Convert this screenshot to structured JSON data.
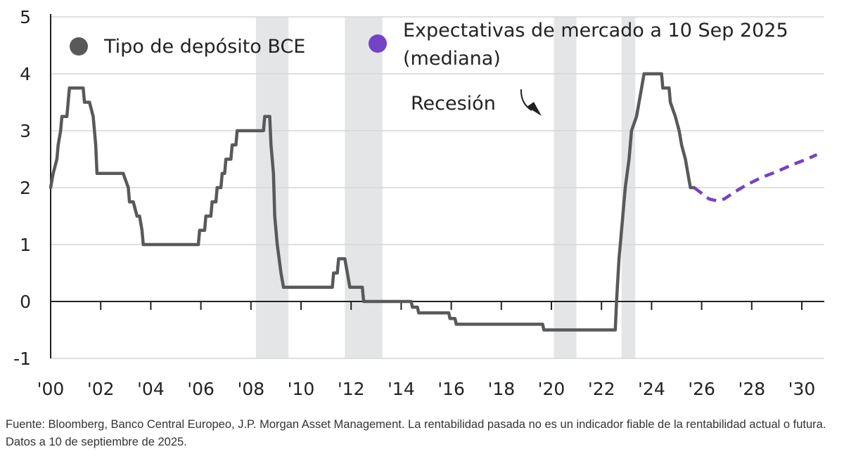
{
  "chart_data": {
    "type": "line",
    "ylim": [
      -1,
      5
    ],
    "xlim": [
      2000,
      2031
    ],
    "y_ticks": [
      "-1",
      "0",
      "1",
      "2",
      "3",
      "4",
      "5"
    ],
    "x_ticks": [
      {
        "x": 2000,
        "label": "'00"
      },
      {
        "x": 2002,
        "label": "'02"
      },
      {
        "x": 2004,
        "label": "'04"
      },
      {
        "x": 2006,
        "label": "'06"
      },
      {
        "x": 2008,
        "label": "'08"
      },
      {
        "x": 2010,
        "label": "'10"
      },
      {
        "x": 2012,
        "label": "'12"
      },
      {
        "x": 2014,
        "label": "'14"
      },
      {
        "x": 2016,
        "label": "'16"
      },
      {
        "x": 2018,
        "label": "'18"
      },
      {
        "x": 2020,
        "label": "'20"
      },
      {
        "x": 2022,
        "label": "'22"
      },
      {
        "x": 2024,
        "label": "'24"
      },
      {
        "x": 2026,
        "label": "'26"
      },
      {
        "x": 2028,
        "label": "'28"
      },
      {
        "x": 2030,
        "label": "'30"
      }
    ],
    "recessions": [
      [
        2008.2,
        2009.5
      ],
      [
        2011.75,
        2013.25
      ],
      [
        2020.1,
        2021.0
      ],
      [
        2022.8,
        2023.35
      ]
    ],
    "grid": "horizontal",
    "series": [
      {
        "name": "Tipo de depósito BCE",
        "color": "#58595b",
        "style": "solid",
        "points": [
          [
            2000.0,
            2.0
          ],
          [
            2000.1,
            2.25
          ],
          [
            2000.25,
            2.5
          ],
          [
            2000.3,
            2.75
          ],
          [
            2000.4,
            3.0
          ],
          [
            2000.45,
            3.25
          ],
          [
            2000.65,
            3.25
          ],
          [
            2000.7,
            3.5
          ],
          [
            2000.75,
            3.75
          ],
          [
            2001.3,
            3.75
          ],
          [
            2001.35,
            3.5
          ],
          [
            2001.55,
            3.5
          ],
          [
            2001.7,
            3.25
          ],
          [
            2001.75,
            3.0
          ],
          [
            2001.8,
            2.75
          ],
          [
            2001.85,
            2.25
          ],
          [
            2002.9,
            2.25
          ],
          [
            2003.1,
            2.0
          ],
          [
            2003.15,
            1.75
          ],
          [
            2003.3,
            1.75
          ],
          [
            2003.45,
            1.5
          ],
          [
            2003.55,
            1.5
          ],
          [
            2003.65,
            1.25
          ],
          [
            2003.7,
            1.0
          ],
          [
            2005.9,
            1.0
          ],
          [
            2005.95,
            1.25
          ],
          [
            2006.15,
            1.25
          ],
          [
            2006.2,
            1.5
          ],
          [
            2006.4,
            1.5
          ],
          [
            2006.45,
            1.75
          ],
          [
            2006.6,
            1.75
          ],
          [
            2006.65,
            2.0
          ],
          [
            2006.8,
            2.0
          ],
          [
            2006.85,
            2.25
          ],
          [
            2006.95,
            2.25
          ],
          [
            2007.0,
            2.5
          ],
          [
            2007.2,
            2.5
          ],
          [
            2007.25,
            2.75
          ],
          [
            2007.4,
            2.75
          ],
          [
            2007.45,
            3.0
          ],
          [
            2008.5,
            3.0
          ],
          [
            2008.55,
            3.25
          ],
          [
            2008.75,
            3.25
          ],
          [
            2008.8,
            2.75
          ],
          [
            2008.9,
            2.25
          ],
          [
            2008.95,
            1.5
          ],
          [
            2009.05,
            1.0
          ],
          [
            2009.2,
            0.5
          ],
          [
            2009.3,
            0.25
          ],
          [
            2011.25,
            0.25
          ],
          [
            2011.3,
            0.5
          ],
          [
            2011.45,
            0.5
          ],
          [
            2011.5,
            0.75
          ],
          [
            2011.75,
            0.75
          ],
          [
            2011.85,
            0.5
          ],
          [
            2011.95,
            0.25
          ],
          [
            2012.45,
            0.25
          ],
          [
            2012.5,
            0.0
          ],
          [
            2014.4,
            0.0
          ],
          [
            2014.45,
            -0.1
          ],
          [
            2014.65,
            -0.1
          ],
          [
            2014.7,
            -0.2
          ],
          [
            2015.9,
            -0.2
          ],
          [
            2015.95,
            -0.3
          ],
          [
            2016.15,
            -0.3
          ],
          [
            2016.2,
            -0.4
          ],
          [
            2019.65,
            -0.4
          ],
          [
            2019.7,
            -0.5
          ],
          [
            2022.55,
            -0.5
          ],
          [
            2022.6,
            0.0
          ],
          [
            2022.7,
            0.75
          ],
          [
            2022.85,
            1.5
          ],
          [
            2022.95,
            2.0
          ],
          [
            2023.1,
            2.5
          ],
          [
            2023.2,
            3.0
          ],
          [
            2023.4,
            3.25
          ],
          [
            2023.5,
            3.5
          ],
          [
            2023.6,
            3.75
          ],
          [
            2023.7,
            4.0
          ],
          [
            2024.4,
            4.0
          ],
          [
            2024.45,
            3.75
          ],
          [
            2024.7,
            3.75
          ],
          [
            2024.75,
            3.5
          ],
          [
            2024.95,
            3.25
          ],
          [
            2025.1,
            3.0
          ],
          [
            2025.2,
            2.75
          ],
          [
            2025.35,
            2.5
          ],
          [
            2025.45,
            2.25
          ],
          [
            2025.55,
            2.0
          ],
          [
            2025.7,
            2.0
          ]
        ]
      },
      {
        "name": "Expectativas de mercado a 10 Sep 2025 (mediana)",
        "color": "#7442c8",
        "style": "dashed",
        "points": [
          [
            2025.7,
            2.0
          ],
          [
            2026.0,
            1.9
          ],
          [
            2026.3,
            1.8
          ],
          [
            2026.6,
            1.77
          ],
          [
            2026.9,
            1.8
          ],
          [
            2027.3,
            1.92
          ],
          [
            2027.8,
            2.05
          ],
          [
            2028.4,
            2.18
          ],
          [
            2029.0,
            2.28
          ],
          [
            2029.6,
            2.4
          ],
          [
            2030.2,
            2.5
          ],
          [
            2030.6,
            2.58
          ]
        ]
      }
    ],
    "legend": [
      {
        "label": "Tipo de depósito BCE",
        "color": "#58595b"
      },
      {
        "label_line1": "Expectativas de mercado a 10 Sep 2025",
        "label_line2": "(mediana)",
        "color": "#7442c8"
      }
    ],
    "recession_label": "Recesión"
  },
  "source": "Fuente: Bloomberg, Banco Central Europeo, J.P. Morgan Asset Management. La rentabilidad pasada no es un indicador fiable de la rentabilidad actual o futura. Datos a 10 de septiembre de 2025."
}
